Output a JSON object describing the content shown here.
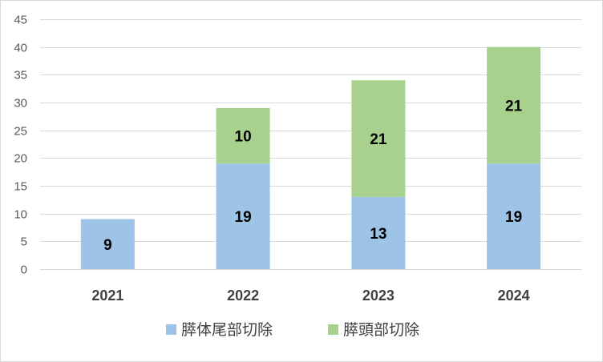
{
  "chart_data": {
    "type": "bar",
    "stacked": true,
    "categories": [
      "2021",
      "2022",
      "2023",
      "2024"
    ],
    "series": [
      {
        "name": "膵体尾部切除",
        "values": [
          9,
          19,
          13,
          19
        ],
        "color": "#9dc3e6"
      },
      {
        "name": "膵頭部切除",
        "values": [
          0,
          10,
          21,
          21
        ],
        "color": "#a9d18e"
      }
    ],
    "ylim": [
      0,
      45
    ],
    "yticks": [
      0,
      5,
      10,
      15,
      20,
      25,
      30,
      35,
      40,
      45
    ],
    "grid": true,
    "legend": "bottom",
    "data_labels": true
  }
}
